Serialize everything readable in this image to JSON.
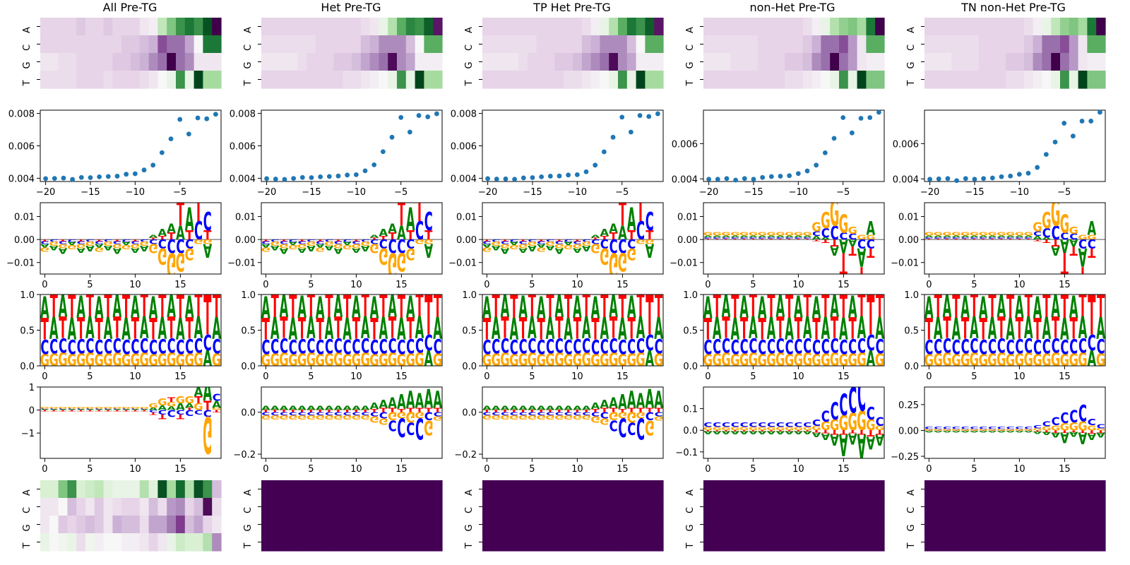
{
  "figure": {
    "column_titles": [
      "All Pre-TG",
      "Het Pre-TG",
      "TP Het Pre-TG",
      "non-Het Pre-TG",
      "TN non-Het Pre-TG"
    ]
  },
  "colors": {
    "A": "#008000",
    "C": "#0000ff",
    "G": "#ffa500",
    "T": "#ff0000",
    "scatter": "#1f77b4",
    "uniform_heatmap": "#440154"
  },
  "chart_data": [
    {
      "type": "heatmap",
      "panel": "diverging-heatmap-row-1",
      "columns": "all 5",
      "colormap": "PRGn",
      "y_tick_labels": [
        "A",
        "C",
        "G",
        "T"
      ],
      "n_positions": 20,
      "values_by_column": [
        {
          "column": "All Pre-TG",
          "A": [
            -0.2,
            -0.2,
            -0.2,
            -0.2,
            -0.25,
            -0.2,
            -0.2,
            -0.25,
            -0.2,
            -0.2,
            -0.2,
            -0.1,
            -0.05,
            0.3,
            0.5,
            0.7,
            0.8,
            0.7,
            0.95,
            -1.0
          ],
          "C": [
            -0.2,
            -0.2,
            -0.2,
            -0.2,
            -0.2,
            -0.2,
            -0.2,
            -0.2,
            -0.2,
            -0.25,
            -0.25,
            -0.3,
            -0.35,
            -0.7,
            -0.6,
            -0.6,
            -0.4,
            0.0,
            0.8,
            0.8
          ],
          "G": [
            -0.1,
            -0.1,
            -0.15,
            -0.15,
            -0.2,
            -0.2,
            -0.2,
            -0.2,
            -0.25,
            -0.25,
            -0.3,
            -0.35,
            -0.5,
            -0.6,
            -1.0,
            -0.6,
            -0.5,
            -0.1,
            -0.1,
            -0.1
          ],
          "T": [
            -0.15,
            -0.15,
            -0.15,
            -0.15,
            -0.2,
            -0.2,
            -0.2,
            -0.15,
            -0.2,
            -0.2,
            -0.2,
            -0.15,
            -0.1,
            0.0,
            0.1,
            0.7,
            0.1,
            1.0,
            0.4,
            0.4
          ]
        },
        {
          "column": "Het Pre-TG",
          "A": [
            -0.2,
            -0.2,
            -0.2,
            -0.2,
            -0.2,
            -0.2,
            -0.2,
            -0.2,
            -0.2,
            -0.2,
            -0.2,
            -0.15,
            -0.1,
            0.1,
            0.35,
            0.6,
            0.75,
            0.7,
            0.9,
            -0.9
          ],
          "C": [
            -0.15,
            -0.15,
            -0.15,
            -0.15,
            -0.15,
            -0.15,
            -0.2,
            -0.2,
            -0.2,
            -0.2,
            -0.2,
            -0.3,
            -0.35,
            -0.5,
            -0.5,
            -0.5,
            -0.3,
            0.0,
            0.6,
            0.6
          ],
          "G": [
            -0.1,
            -0.1,
            -0.1,
            -0.1,
            -0.15,
            -0.2,
            -0.2,
            -0.2,
            -0.25,
            -0.25,
            -0.3,
            -0.4,
            -0.5,
            -0.6,
            -0.95,
            -0.5,
            -0.4,
            -0.05,
            -0.05,
            -0.05
          ],
          "T": [
            -0.2,
            -0.2,
            -0.2,
            -0.2,
            -0.2,
            -0.2,
            -0.2,
            -0.2,
            -0.2,
            -0.15,
            -0.15,
            -0.1,
            -0.05,
            0.0,
            0.1,
            0.7,
            0.1,
            1.0,
            0.4,
            0.4
          ]
        },
        {
          "column": "TP Het Pre-TG",
          "A": [
            -0.2,
            -0.2,
            -0.2,
            -0.2,
            -0.2,
            -0.2,
            -0.2,
            -0.2,
            -0.2,
            -0.2,
            -0.2,
            -0.15,
            -0.05,
            0.1,
            0.35,
            0.6,
            0.8,
            0.7,
            0.9,
            -0.9
          ],
          "C": [
            -0.15,
            -0.15,
            -0.15,
            -0.15,
            -0.15,
            -0.15,
            -0.2,
            -0.2,
            -0.2,
            -0.2,
            -0.2,
            -0.3,
            -0.35,
            -0.5,
            -0.5,
            -0.5,
            -0.3,
            0.0,
            0.6,
            0.6
          ],
          "G": [
            -0.1,
            -0.1,
            -0.1,
            -0.1,
            -0.15,
            -0.2,
            -0.2,
            -0.2,
            -0.25,
            -0.25,
            -0.3,
            -0.4,
            -0.5,
            -0.6,
            -0.95,
            -0.5,
            -0.4,
            -0.05,
            -0.05,
            -0.05
          ],
          "T": [
            -0.2,
            -0.2,
            -0.2,
            -0.2,
            -0.2,
            -0.2,
            -0.2,
            -0.2,
            -0.2,
            -0.15,
            -0.15,
            -0.1,
            -0.05,
            0.0,
            0.1,
            0.7,
            0.1,
            1.0,
            0.4,
            0.4
          ]
        },
        {
          "column": "non-Het Pre-TG",
          "A": [
            -0.2,
            -0.2,
            -0.2,
            -0.2,
            -0.2,
            -0.2,
            -0.2,
            -0.2,
            -0.2,
            -0.2,
            -0.2,
            -0.15,
            -0.05,
            0.1,
            0.35,
            0.45,
            0.5,
            0.4,
            0.8,
            -1.0
          ],
          "C": [
            -0.15,
            -0.15,
            -0.15,
            -0.15,
            -0.15,
            -0.15,
            -0.2,
            -0.2,
            -0.2,
            -0.2,
            -0.2,
            -0.25,
            -0.35,
            -0.6,
            -0.6,
            -0.7,
            -0.45,
            -0.1,
            0.6,
            0.6
          ],
          "G": [
            -0.1,
            -0.1,
            -0.1,
            -0.15,
            -0.15,
            -0.15,
            -0.2,
            -0.2,
            -0.2,
            -0.25,
            -0.25,
            -0.3,
            -0.5,
            -0.6,
            -1.0,
            -0.6,
            -0.45,
            -0.1,
            -0.05,
            -0.05
          ],
          "T": [
            -0.2,
            -0.2,
            -0.2,
            -0.2,
            -0.2,
            -0.2,
            -0.2,
            -0.2,
            -0.2,
            -0.15,
            -0.15,
            -0.1,
            -0.05,
            0.0,
            0.1,
            0.7,
            0.1,
            1.0,
            0.5,
            0.5
          ]
        },
        {
          "column": "TN non-Het Pre-TG",
          "A": [
            -0.2,
            -0.2,
            -0.2,
            -0.2,
            -0.2,
            -0.2,
            -0.2,
            -0.2,
            -0.2,
            -0.2,
            -0.2,
            -0.15,
            -0.05,
            0.1,
            0.3,
            0.45,
            0.5,
            0.4,
            0.8,
            -1.0
          ],
          "C": [
            -0.15,
            -0.15,
            -0.15,
            -0.15,
            -0.15,
            -0.15,
            -0.2,
            -0.2,
            -0.2,
            -0.2,
            -0.2,
            -0.25,
            -0.35,
            -0.6,
            -0.6,
            -0.7,
            -0.45,
            -0.1,
            0.6,
            0.6
          ],
          "G": [
            -0.1,
            -0.1,
            -0.1,
            -0.15,
            -0.15,
            -0.15,
            -0.2,
            -0.2,
            -0.2,
            -0.25,
            -0.25,
            -0.3,
            -0.5,
            -0.6,
            -1.0,
            -0.6,
            -0.45,
            -0.1,
            -0.05,
            -0.05
          ],
          "T": [
            -0.2,
            -0.2,
            -0.2,
            -0.2,
            -0.2,
            -0.2,
            -0.2,
            -0.2,
            -0.2,
            -0.15,
            -0.15,
            -0.1,
            -0.05,
            0.0,
            0.1,
            0.7,
            0.1,
            1.0,
            0.5,
            0.5
          ]
        }
      ]
    },
    {
      "type": "scatter",
      "panel": "scatter-row-2",
      "columns": "all 5",
      "x": [
        -20,
        -19,
        -18,
        -17,
        -16,
        -15,
        -14,
        -13,
        -12,
        -11,
        -10,
        -9,
        -8,
        -7,
        -6,
        -5,
        -4,
        -3,
        -2,
        -1
      ],
      "y_by_column": [
        {
          "column": "All Pre-TG",
          "ylim": [
            0.0038,
            0.0082
          ],
          "yticks": [
            0.004,
            0.006,
            0.008
          ],
          "y": [
            0.00398,
            0.00399,
            0.00401,
            0.00393,
            0.00405,
            0.00404,
            0.00409,
            0.00411,
            0.00413,
            0.00425,
            0.00428,
            0.00451,
            0.00481,
            0.00558,
            0.00643,
            0.00763,
            0.00673,
            0.00772,
            0.00767,
            0.00795
          ]
        },
        {
          "column": "Het Pre-TG",
          "ylim": [
            0.0038,
            0.0082
          ],
          "yticks": [
            0.004,
            0.006,
            0.008
          ],
          "y": [
            0.00398,
            0.00395,
            0.00393,
            0.00399,
            0.00405,
            0.00404,
            0.00409,
            0.00411,
            0.00414,
            0.0042,
            0.00422,
            0.00446,
            0.00483,
            0.00564,
            0.00653,
            0.00775,
            0.00685,
            0.00787,
            0.00779,
            0.00798
          ]
        },
        {
          "column": "TP Het Pre-TG",
          "ylim": [
            0.0038,
            0.0082
          ],
          "yticks": [
            0.004,
            0.006,
            0.008
          ],
          "y": [
            0.00398,
            0.00395,
            0.00396,
            0.00394,
            0.00402,
            0.00404,
            0.00409,
            0.00413,
            0.00414,
            0.0042,
            0.00422,
            0.0044,
            0.00481,
            0.00563,
            0.00653,
            0.00777,
            0.00685,
            0.00787,
            0.00781,
            0.00798
          ]
        },
        {
          "column": "non-Het Pre-TG",
          "ylim": [
            0.00385,
            0.0079
          ],
          "yticks": [
            0.004,
            0.006
          ],
          "y": [
            0.00398,
            0.00398,
            0.00402,
            0.00393,
            0.00402,
            0.00398,
            0.00408,
            0.00413,
            0.00415,
            0.00418,
            0.0043,
            0.00445,
            0.00478,
            0.00548,
            0.0063,
            0.00748,
            0.00661,
            0.00744,
            0.00748,
            0.00778
          ]
        },
        {
          "column": "TN non-Het Pre-TG",
          "ylim": [
            0.00385,
            0.0079
          ],
          "yticks": [
            0.004,
            0.006
          ],
          "y": [
            0.00398,
            0.004,
            0.00402,
            0.0039,
            0.00402,
            0.00398,
            0.00402,
            0.00405,
            0.00412,
            0.00416,
            0.00426,
            0.00432,
            0.00465,
            0.00539,
            0.00609,
            0.00716,
            0.00643,
            0.00728,
            0.00728,
            0.00778
          ]
        }
      ]
    },
    {
      "type": "sequence-logo",
      "panel": "logo-row-3",
      "columns": "all 5",
      "xticks": [
        0,
        5,
        10,
        15
      ]
    },
    {
      "type": "sequence-logo",
      "panel": "logo-row-4",
      "columns": "all 5",
      "ylim": [
        0,
        1
      ],
      "yticks": [
        0.0,
        0.5,
        1.0
      ],
      "xticks": [
        0,
        5,
        10,
        15
      ]
    },
    {
      "type": "sequence-logo",
      "panel": "logo-row-5",
      "columns": "all 5",
      "xticks": [
        0,
        5,
        10,
        15
      ]
    },
    {
      "type": "heatmap",
      "panel": "heatmap-row-6",
      "y_tick_labels": [
        "A",
        "C",
        "G",
        "T"
      ],
      "values_by_column": [
        {
          "column": "All Pre-TG",
          "A": [
            0.2,
            0.2,
            0.5,
            0.7,
            0.2,
            0.25,
            0.3,
            0.15,
            0.1,
            0.1,
            0.1,
            0.35,
            0.15,
            0.95,
            0.4,
            0.85,
            0.35,
            0.95,
            0.7,
            -0.3
          ],
          "C": [
            -0.1,
            -0.1,
            0.0,
            -0.3,
            -0.2,
            -0.1,
            -0.25,
            -0.1,
            -0.15,
            -0.2,
            -0.2,
            -0.1,
            -0.3,
            -0.15,
            -0.45,
            -0.5,
            -0.2,
            -0.3,
            -0.95,
            -0.15
          ],
          "G": [
            -0.1,
            0.0,
            -0.25,
            -0.2,
            -0.25,
            -0.3,
            -0.25,
            -0.1,
            -0.35,
            -0.3,
            -0.3,
            -0.15,
            -0.4,
            -0.4,
            -0.55,
            -0.75,
            -0.3,
            -0.4,
            -0.2,
            -0.1
          ],
          "T": [
            0.1,
            0.0,
            0.05,
            0.1,
            -0.15,
            0.05,
            -0.05,
            0.0,
            0.0,
            -0.05,
            -0.05,
            -0.1,
            -0.2,
            -0.1,
            0.1,
            0.25,
            0.2,
            0.2,
            0.35,
            -0.5
          ]
        },
        {
          "column": "Het Pre-TG",
          "uniform": true
        },
        {
          "column": "TP Het Pre-TG",
          "uniform": true
        },
        {
          "column": "non-Het Pre-TG",
          "uniform": true
        },
        {
          "column": "TN non-Het Pre-TG",
          "uniform": true
        }
      ]
    }
  ],
  "axes": {
    "heat_letters": [
      "A",
      "C",
      "G",
      "T"
    ],
    "scatter": [
      {
        "xticks": [
          "−20",
          "−15",
          "−10",
          "−5"
        ],
        "yticks": [
          "0.004",
          "0.006",
          "0.008"
        ]
      },
      {
        "xticks": [
          "−20",
          "−15",
          "−10",
          "−5"
        ],
        "yticks": [
          "0.004",
          "0.006",
          "0.008"
        ]
      },
      {
        "xticks": [
          "−20",
          "−15",
          "−10",
          "−5"
        ],
        "yticks": [
          "0.004",
          "0.006",
          "0.008"
        ]
      },
      {
        "xticks": [
          "−20",
          "−15",
          "−10",
          "−5"
        ],
        "yticks": [
          "0.004",
          "0.006"
        ]
      },
      {
        "xticks": [
          "−20",
          "−15",
          "−10",
          "−5"
        ],
        "yticks": [
          "0.004",
          "0.006"
        ]
      }
    ],
    "logo3": [
      {
        "yticks": [
          "0.01",
          "0.00",
          "−0.01"
        ],
        "xticks": [
          "0",
          "5",
          "10",
          "15"
        ]
      },
      {
        "yticks": [
          "0.01",
          "0.00",
          "−0.01"
        ],
        "xticks": [
          "0",
          "5",
          "10",
          "15"
        ]
      },
      {
        "yticks": [
          "0.01",
          "0.00",
          "−0.01"
        ],
        "xticks": [
          "0",
          "5",
          "10",
          "15"
        ]
      },
      {
        "yticks": [
          "0.01",
          "0.00",
          "−0.01"
        ],
        "xticks": [
          "0",
          "5",
          "10",
          "15"
        ]
      },
      {
        "yticks": [
          "0.01",
          "0.00",
          "−0.01"
        ],
        "xticks": [
          "0",
          "5",
          "10",
          "15"
        ]
      }
    ],
    "logo4": [
      {
        "yticks": [
          "1.0",
          "0.5",
          "0.0"
        ],
        "xticks": [
          "0",
          "5",
          "10",
          "15"
        ]
      },
      {
        "yticks": [
          "1.0",
          "0.5",
          "0.0"
        ],
        "xticks": [
          "0",
          "5",
          "10",
          "15"
        ]
      },
      {
        "yticks": [
          "1.0",
          "0.5",
          "0.0"
        ],
        "xticks": [
          "0",
          "5",
          "10",
          "15"
        ]
      },
      {
        "yticks": [
          "1.0",
          "0.5",
          "0.0"
        ],
        "xticks": [
          "0",
          "5",
          "10",
          "15"
        ]
      },
      {
        "yticks": [
          "1.0",
          "0.5",
          "0.0"
        ],
        "xticks": [
          "0",
          "5",
          "10",
          "15"
        ]
      }
    ],
    "logo5": [
      {
        "yticks": [
          "1",
          "0",
          "−1"
        ],
        "xticks": [
          "0",
          "5",
          "10",
          "15"
        ]
      },
      {
        "yticks": [
          "0.0",
          "−0.2"
        ],
        "xticks": [
          "0",
          "5",
          "10",
          "15"
        ]
      },
      {
        "yticks": [
          "0.0",
          "−0.2"
        ],
        "xticks": [
          "0",
          "5",
          "10",
          "15"
        ]
      },
      {
        "yticks": [
          "0.1",
          "0.0",
          "−0.1"
        ],
        "xticks": [
          "0",
          "5",
          "10",
          "15"
        ]
      },
      {
        "yticks": [
          "0.25",
          "0.00",
          "−0.25"
        ],
        "xticks": [
          "0",
          "5",
          "10",
          "15"
        ]
      }
    ]
  }
}
